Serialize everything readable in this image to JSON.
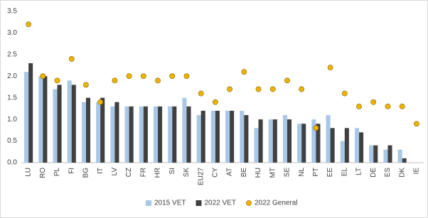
{
  "chart_data": {
    "type": "bar",
    "categories": [
      "LU",
      "RO",
      "PL",
      "FI",
      "BG",
      "IT",
      "LV",
      "CZ",
      "FR",
      "HR",
      "SI",
      "SK",
      "EU27",
      "CY",
      "AT",
      "BE",
      "HU",
      "MT",
      "SE",
      "NL",
      "PT",
      "EE",
      "EL",
      "LT",
      "DE",
      "ES",
      "DK",
      "IE"
    ],
    "series": [
      {
        "name": "2015 VET",
        "type": "bar",
        "color": "#a9c8e8",
        "values": [
          2.1,
          2.0,
          1.7,
          1.9,
          1.4,
          1.4,
          1.3,
          1.3,
          1.3,
          1.3,
          1.3,
          1.5,
          1.1,
          1.2,
          1.2,
          1.2,
          0.8,
          1.0,
          1.1,
          0.9,
          1.0,
          1.1,
          0.5,
          0.8,
          0.4,
          0.3,
          0.3,
          null
        ]
      },
      {
        "name": "2022 VET",
        "type": "bar",
        "color": "#404040",
        "values": [
          2.3,
          2.0,
          1.8,
          1.8,
          1.5,
          1.5,
          1.4,
          1.3,
          1.3,
          1.3,
          1.3,
          1.3,
          1.2,
          1.2,
          1.2,
          1.1,
          1.0,
          1.0,
          1.0,
          0.9,
          0.9,
          0.8,
          0.8,
          0.7,
          0.4,
          0.4,
          0.1,
          null
        ]
      },
      {
        "name": "2022 General",
        "type": "scatter",
        "color": "#f0b400",
        "values": [
          3.2,
          2.0,
          1.9,
          2.4,
          1.8,
          1.4,
          1.9,
          2.0,
          2.0,
          1.9,
          2.0,
          2.0,
          1.6,
          1.4,
          1.7,
          2.1,
          1.7,
          1.7,
          1.9,
          1.7,
          0.8,
          2.2,
          1.6,
          1.3,
          1.4,
          1.3,
          1.3,
          0.9
        ]
      }
    ],
    "ylim": [
      0,
      3.5
    ],
    "yticks": [
      {
        "value": 0,
        "label": "0.0"
      },
      {
        "value": 0.5,
        "label": "0.5"
      },
      {
        "value": 1,
        "label": "1.0"
      },
      {
        "value": 1.5,
        "label": "1.5"
      },
      {
        "value": 2,
        "label": "2.0"
      },
      {
        "value": 2.5,
        "label": "2.5"
      },
      {
        "value": 3,
        "label": "3.0"
      },
      {
        "value": 3.5,
        "label": "3.5"
      }
    ],
    "grid": false,
    "legend": "bottom"
  }
}
